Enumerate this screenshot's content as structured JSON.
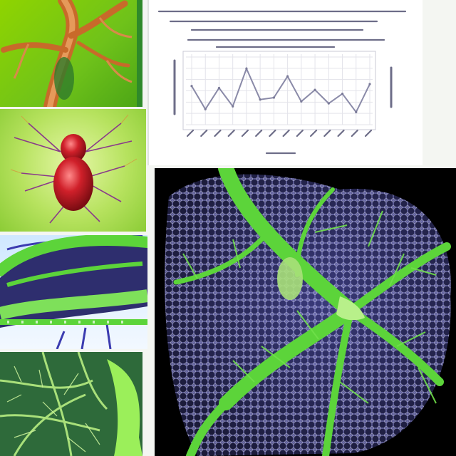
{
  "figure": {
    "panels": [
      {
        "id": "p1",
        "subject": "branching-vessel-illustration"
      },
      {
        "id": "p2",
        "subject": "red-organ-with-vessels-illustration"
      },
      {
        "id": "p3",
        "subject": "green-tubular-tissue-render"
      },
      {
        "id": "p4",
        "subject": "green-vessel-network-render"
      },
      {
        "id": "p5",
        "subject": "document-with-line-chart"
      },
      {
        "id": "p6",
        "subject": "lung-vasculature-render"
      }
    ],
    "colors": {
      "vessel_orange": "#d87a3a",
      "organ_red": "#c0141c",
      "tissue_green": "#5cd43a",
      "lung_lattice": "#8a8ad0",
      "chart_line": "#8a8aa8"
    }
  },
  "chart_data": {
    "type": "line",
    "x": [
      1,
      2,
      3,
      4,
      5,
      6,
      7,
      8,
      9,
      10,
      11,
      12,
      13,
      14
    ],
    "series": [
      {
        "values": [
          4.0,
          1.6,
          3.8,
          1.9,
          5.8,
          2.6,
          2.8,
          5.0,
          2.4,
          3.6,
          2.2,
          3.2,
          1.3,
          4.2
        ]
      }
    ],
    "ylim": [
      0,
      7
    ],
    "grid": true,
    "title": "",
    "xlabel": "",
    "ylabel": ""
  }
}
